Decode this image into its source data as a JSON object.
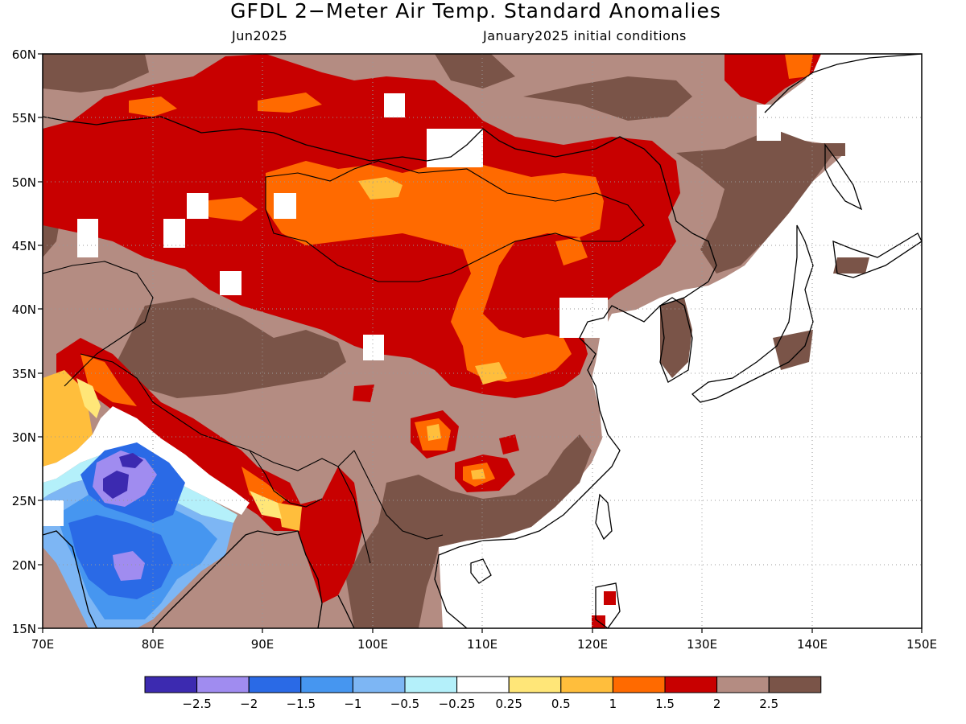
{
  "title": "GFDL 2−Meter Air Temp. Standard Anomalies",
  "subtitle_left": "Jun2025",
  "subtitle_right": "January2025 initial conditions",
  "axes": {
    "lat_labels": [
      "60N",
      "55N",
      "50N",
      "45N",
      "40N",
      "35N",
      "30N",
      "25N",
      "20N",
      "15N"
    ],
    "lon_labels": [
      "70E",
      "80E",
      "90E",
      "100E",
      "110E",
      "120E",
      "130E",
      "140E",
      "150E"
    ],
    "lat_range": [
      15,
      60
    ],
    "lon_range": [
      70,
      150
    ],
    "grid": "dotted"
  },
  "colorbar": {
    "colors": [
      "#3c2ab0",
      "#a08cf0",
      "#2a6ae6",
      "#4696f0",
      "#7db6f4",
      "#b4f0fa",
      "#ffffff",
      "#ffe678",
      "#ffbe3c",
      "#ff6a00",
      "#c80000",
      "#b48c82",
      "#7a5448"
    ],
    "labels": [
      "−2.5",
      "−2",
      "−1.5",
      "−1",
      "−0.5",
      "−0.25",
      "0.25",
      "0.5",
      "1",
      "1.5",
      "2",
      "2.5"
    ]
  }
}
